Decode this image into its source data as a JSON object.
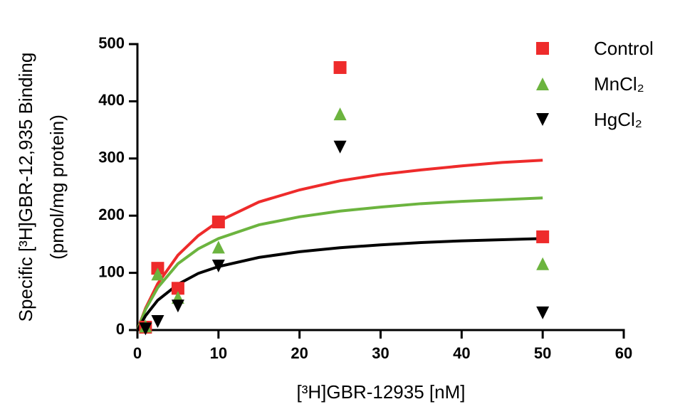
{
  "chart_data": {
    "type": "scatter",
    "x_label": "[³H]GBR-12935 [nM]",
    "y_label": [
      "Specific [³H]GBR-12,935 Binding",
      "(pmol/mg protein)"
    ],
    "x": [
      1,
      2.5,
      5,
      10,
      25,
      50
    ],
    "fit_x": [
      0,
      1,
      2.5,
      5,
      7.5,
      10,
      15,
      20,
      25,
      30,
      35,
      40,
      45,
      50
    ],
    "series": [
      {
        "name": "Control",
        "color": "#ee2b2b",
        "marker": "square",
        "values": [
          5,
          108,
          73,
          189,
          459,
          163
        ],
        "fit_values": [
          0,
          38,
          81,
          131,
          165,
          190,
          224,
          245,
          261,
          272,
          280,
          287,
          293,
          297
        ]
      },
      {
        "name": "MnCl₂",
        "color": "#6cb43f",
        "marker": "triangle-up",
        "values": [
          7,
          98,
          57,
          145,
          378,
          116
        ],
        "fit_values": [
          0,
          36,
          74,
          116,
          142,
          160,
          184,
          198,
          208,
          215,
          221,
          225,
          228,
          231
        ]
      },
      {
        "name": "HgCl₂",
        "color": "#000000",
        "marker": "triangle-down",
        "values": [
          2,
          15,
          42,
          112,
          320,
          30
        ],
        "fit_values": [
          0,
          25,
          52,
          80,
          99,
          111,
          127,
          137,
          144,
          149,
          153,
          156,
          158,
          160
        ]
      }
    ],
    "xlim": [
      0,
      60
    ],
    "ylim": [
      0,
      500
    ],
    "xticks": [
      0,
      10,
      20,
      30,
      40,
      50,
      60
    ],
    "yticks": [
      0,
      100,
      200,
      300,
      400,
      500
    ],
    "legend": "upper right"
  }
}
